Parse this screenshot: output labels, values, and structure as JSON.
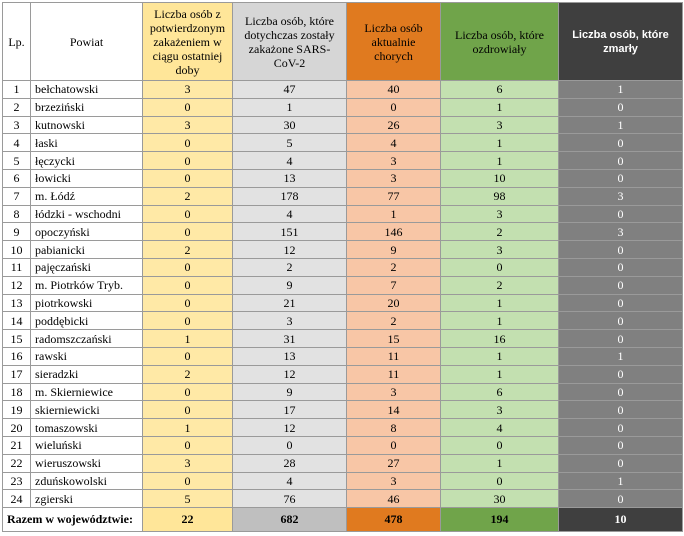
{
  "table": {
    "header": [
      "Lp.",
      "Powiat",
      "Liczba osób z potwierdzonym zakażeniem w ciągu ostatniej doby",
      "Liczba osób, które dotychczas zostały zakażone SARS-CoV-2",
      "Liczba osób aktualnie chorych",
      "Liczba osób, które ozdrowiały",
      "Liczba osób, które zmarły"
    ],
    "rows": [
      [
        "1",
        "bełchatowski",
        3,
        47,
        40,
        6,
        1
      ],
      [
        "2",
        "brzeziński",
        0,
        1,
        0,
        1,
        0
      ],
      [
        "3",
        "kutnowski",
        3,
        30,
        26,
        3,
        1
      ],
      [
        "4",
        "łaski",
        0,
        5,
        4,
        1,
        0
      ],
      [
        "5",
        "łęczycki",
        0,
        4,
        3,
        1,
        0
      ],
      [
        "6",
        "łowicki",
        0,
        13,
        3,
        10,
        0
      ],
      [
        "7",
        "m. Łódź",
        2,
        178,
        77,
        98,
        3
      ],
      [
        "8",
        "łódzki - wschodni",
        0,
        4,
        1,
        3,
        0
      ],
      [
        "9",
        "opoczyński",
        0,
        151,
        146,
        2,
        3
      ],
      [
        "10",
        "pabianicki",
        2,
        12,
        9,
        3,
        0
      ],
      [
        "11",
        "pajęczański",
        0,
        2,
        2,
        0,
        0
      ],
      [
        "12",
        "m. Piotrków Tryb.",
        0,
        9,
        7,
        2,
        0
      ],
      [
        "13",
        "piotrkowski",
        0,
        21,
        20,
        1,
        0
      ],
      [
        "14",
        "poddębicki",
        0,
        3,
        2,
        1,
        0
      ],
      [
        "15",
        "radomszczański",
        1,
        31,
        15,
        16,
        0
      ],
      [
        "16",
        "rawski",
        0,
        13,
        11,
        1,
        1
      ],
      [
        "17",
        "sieradzki",
        2,
        12,
        11,
        1,
        0
      ],
      [
        "18",
        "m. Skierniewice",
        0,
        9,
        3,
        6,
        0
      ],
      [
        "19",
        "skierniewicki",
        0,
        17,
        14,
        3,
        0
      ],
      [
        "20",
        "tomaszowski",
        1,
        12,
        8,
        4,
        0
      ],
      [
        "21",
        "wieluński",
        0,
        0,
        0,
        0,
        0
      ],
      [
        "22",
        "wieruszowski",
        3,
        28,
        27,
        1,
        0
      ],
      [
        "23",
        "zduńskowolski",
        0,
        4,
        3,
        0,
        1
      ],
      [
        "24",
        "zgierski",
        5,
        76,
        46,
        30,
        0
      ]
    ],
    "total": {
      "label": "Razem w województwie:",
      "values": [
        22,
        682,
        478,
        194,
        10
      ]
    }
  }
}
